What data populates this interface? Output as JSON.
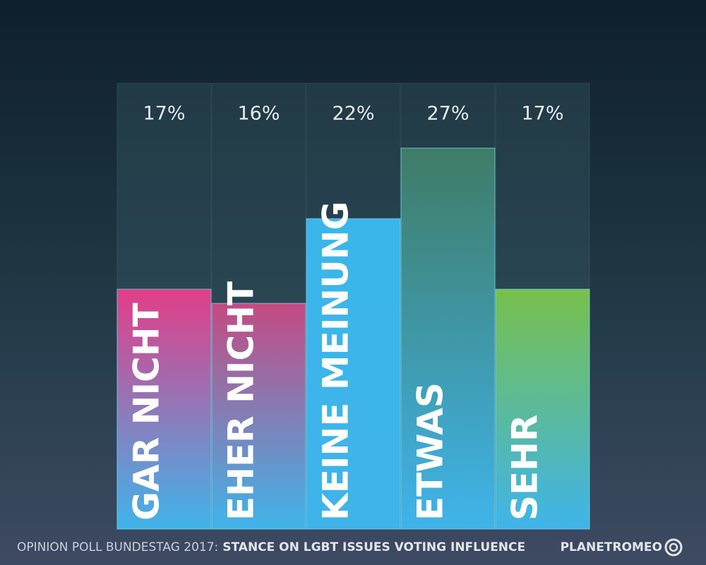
{
  "chart_data": {
    "type": "bar",
    "categories": [
      "GAR NICHT",
      "EHER NICHT",
      "KEINE MEINUNG",
      "ETWAS",
      "SEHR"
    ],
    "values": [
      17,
      16,
      22,
      27,
      17
    ],
    "value_labels": [
      "17%",
      "16%",
      "22%",
      "27%",
      "17%"
    ],
    "colors": [
      "#e23d88",
      "#c44a82",
      "#3ab6ea",
      "#3f7c66",
      "#78c04c"
    ],
    "footer": {
      "title": "OPINION POLL BUNDESTAG 2017:",
      "subtitle": "STANCE ON LGBT ISSUES VOTING INFLUENCE",
      "brand": "PLANETROMEO"
    }
  }
}
